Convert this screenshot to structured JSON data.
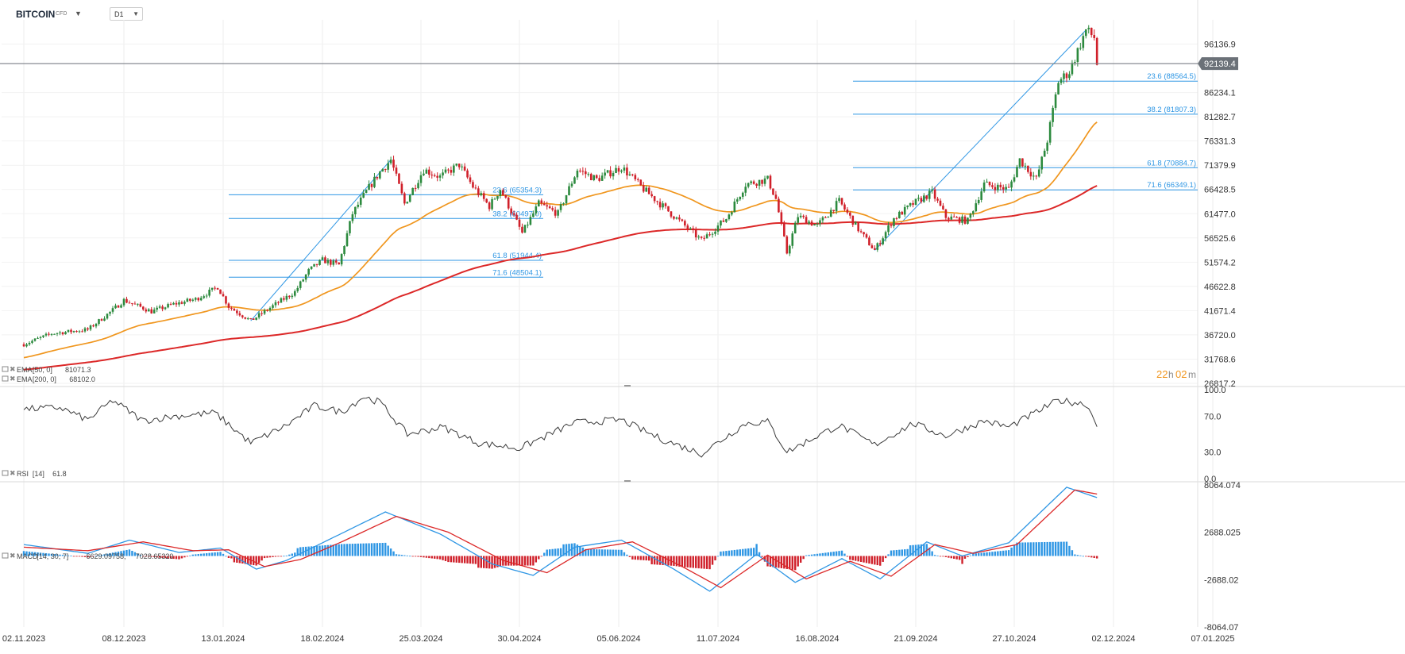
{
  "header": {
    "symbol": "BITCOIN",
    "symbol_suffix": "CFD",
    "timeframe": "D1",
    "countdown_hours": "22",
    "countdown_h": "h",
    "countdown_minutes": "02",
    "countdown_m": "m"
  },
  "colors": {
    "bull": "#2c8a3e",
    "bear": "#d0202a",
    "ema50": "#f0961e",
    "ema200": "#dc2828",
    "fib": "#2e96e4",
    "price_line": "#7a7f86",
    "rsi": "#3a3a3a",
    "macd": "#2e96e4",
    "signal": "#dc2828",
    "countdown": "#f0961e"
  },
  "icons": [
    "remove-icon",
    "settings-icon",
    "dropdown-caret-icon"
  ],
  "chart_data": [
    {
      "type": "candlestick",
      "title": "BITCOIN",
      "timeframe": "D1",
      "ylim": [
        26817.2,
        101088.0
      ],
      "y_ticks": [
        "96136.9",
        "86234.1",
        "81282.7",
        "76331.3",
        "71379.9",
        "66428.5",
        "61477.0",
        "56525.6",
        "51574.2",
        "46622.8",
        "41671.4",
        "36720.0",
        "31768.6",
        "26817.2"
      ],
      "x_ticks": [
        "02.11.2023",
        "08.12.2023",
        "13.01.2024",
        "18.02.2024",
        "25.03.2024",
        "30.04.2024",
        "05.06.2024",
        "11.07.2024",
        "16.08.2024",
        "21.09.2024",
        "27.10.2024",
        "02.12.2024",
        "07.01.2025"
      ],
      "current_price": 92139.4,
      "current_price_label": "92139.4",
      "price_path": [
        [
          "2023-11-02",
          34800
        ],
        [
          "2023-11-12",
          37000
        ],
        [
          "2023-11-25",
          37800
        ],
        [
          "2023-12-04",
          41800
        ],
        [
          "2023-12-08",
          43800
        ],
        [
          "2023-12-18",
          41500
        ],
        [
          "2023-12-26",
          43000
        ],
        [
          "2024-01-03",
          44000
        ],
        [
          "2024-01-08",
          45500
        ],
        [
          "2024-01-11",
          46500
        ],
        [
          "2024-01-15",
          42500
        ],
        [
          "2024-01-23",
          39600
        ],
        [
          "2024-02-01",
          43000
        ],
        [
          "2024-02-08",
          45500
        ],
        [
          "2024-02-13",
          49800
        ],
        [
          "2024-02-18",
          52000
        ],
        [
          "2024-02-24",
          51000
        ],
        [
          "2024-02-29",
          61500
        ],
        [
          "2024-03-05",
          66000
        ],
        [
          "2024-03-10",
          70000
        ],
        [
          "2024-03-14",
          72500
        ],
        [
          "2024-03-19",
          63500
        ],
        [
          "2024-03-26",
          70500
        ],
        [
          "2024-04-01",
          69000
        ],
        [
          "2024-04-08",
          71500
        ],
        [
          "2024-04-13",
          67000
        ],
        [
          "2024-04-19",
          63000
        ],
        [
          "2024-04-23",
          66500
        ],
        [
          "2024-05-01",
          57500
        ],
        [
          "2024-05-07",
          63500
        ],
        [
          "2024-05-14",
          61500
        ],
        [
          "2024-05-21",
          70500
        ],
        [
          "2024-05-28",
          68500
        ],
        [
          "2024-06-06",
          71000
        ],
        [
          "2024-06-14",
          66500
        ],
        [
          "2024-06-24",
          61500
        ],
        [
          "2024-07-05",
          56000
        ],
        [
          "2024-07-14",
          60500
        ],
        [
          "2024-07-21",
          67500
        ],
        [
          "2024-07-29",
          68500
        ],
        [
          "2024-08-01",
          64500
        ],
        [
          "2024-08-05",
          53500
        ],
        [
          "2024-08-09",
          61000
        ],
        [
          "2024-08-16",
          59000
        ],
        [
          "2024-08-24",
          64000
        ],
        [
          "2024-09-01",
          57500
        ],
        [
          "2024-09-06",
          54000
        ],
        [
          "2024-09-13",
          60500
        ],
        [
          "2024-09-20",
          63500
        ],
        [
          "2024-09-27",
          65800
        ],
        [
          "2024-10-02",
          60800
        ],
        [
          "2024-10-10",
          60000
        ],
        [
          "2024-10-16",
          67500
        ],
        [
          "2024-10-25",
          66500
        ],
        [
          "2024-10-29",
          72500
        ],
        [
          "2024-11-04",
          68500
        ],
        [
          "2024-11-08",
          76500
        ],
        [
          "2024-11-12",
          88500
        ],
        [
          "2024-11-16",
          90500
        ],
        [
          "2024-11-22",
          99000
        ],
        [
          "2024-11-25",
          97500
        ],
        [
          "2024-11-26",
          92139
        ]
      ],
      "fibonacci_retracements": [
        {
          "range": [
            "2024-01-23",
            "2024-03-14"
          ],
          "levels": [
            {
              "label": "23.6 (65354.3)",
              "value": 65354.3
            },
            {
              "label": "38.2 (60497.0)",
              "value": 60497.0
            },
            {
              "label": "61.8 (51944.4)",
              "value": 51944.4
            },
            {
              "label": "71.6 (48504.1)",
              "value": 48504.1
            }
          ]
        },
        {
          "range": [
            "2024-09-06",
            "2024-11-22"
          ],
          "levels": [
            {
              "label": "23.6 (88564.5)",
              "value": 88564.5
            },
            {
              "label": "38.2 (81807.3)",
              "value": 81807.3
            },
            {
              "label": "61.8 (70884.7)",
              "value": 70884.7
            },
            {
              "label": "71.6 (66349.1)",
              "value": 66349.1
            }
          ]
        }
      ],
      "indicators": [
        {
          "name": "EMA",
          "params": "[50, 0]",
          "value": "81071.3",
          "color": "#f0961e"
        },
        {
          "name": "EMA",
          "params": "[200, 0]",
          "value": "68102.0",
          "color": "#dc2828"
        }
      ]
    },
    {
      "type": "line",
      "title": "RSI",
      "params": "[14]",
      "value_label": "61.8",
      "ylim": [
        0,
        100
      ],
      "y_ticks": [
        "100.0",
        "70.0",
        "30.0",
        "0.0"
      ],
      "series": [
        {
          "values": [
            [
              "2023-11-02",
              78
            ],
            [
              "2023-11-15",
              80
            ],
            [
              "2023-11-25",
              66
            ],
            [
              "2023-12-04",
              88
            ],
            [
              "2023-12-15",
              65
            ],
            [
              "2023-12-26",
              70
            ],
            [
              "2024-01-10",
              74
            ],
            [
              "2024-01-23",
              40
            ],
            [
              "2024-02-05",
              60
            ],
            [
              "2024-02-15",
              82
            ],
            [
              "2024-02-25",
              75
            ],
            [
              "2024-03-04",
              92
            ],
            [
              "2024-03-10",
              86
            ],
            [
              "2024-03-20",
              50
            ],
            [
              "2024-04-02",
              58
            ],
            [
              "2024-04-15",
              40
            ],
            [
              "2024-04-30",
              34
            ],
            [
              "2024-05-20",
              63
            ],
            [
              "2024-06-06",
              66
            ],
            [
              "2024-06-20",
              45
            ],
            [
              "2024-07-05",
              28
            ],
            [
              "2024-07-21",
              62
            ],
            [
              "2024-07-29",
              64
            ],
            [
              "2024-08-05",
              30
            ],
            [
              "2024-08-16",
              48
            ],
            [
              "2024-08-24",
              60
            ],
            [
              "2024-09-06",
              38
            ],
            [
              "2024-09-20",
              62
            ],
            [
              "2024-10-02",
              48
            ],
            [
              "2024-10-16",
              65
            ],
            [
              "2024-10-25",
              58
            ],
            [
              "2024-11-12",
              88
            ],
            [
              "2024-11-22",
              84
            ],
            [
              "2024-11-26",
              62
            ]
          ]
        }
      ]
    },
    {
      "type": "line+bar",
      "title": "MACD",
      "params": "[14, 30, 7]",
      "value_labels": [
        "6629.09758",
        "7028.65320"
      ],
      "ylim": [
        -8064.07,
        8064.074
      ],
      "y_ticks": [
        "8064.074",
        "2688.025",
        "-2688.02",
        "-8064.07"
      ],
      "series": [
        {
          "values": [
            [
              "2023-11-02",
              1300
            ],
            [
              "2023-11-25",
              300
            ],
            [
              "2023-12-10",
              1800
            ],
            [
              "2023-12-28",
              400
            ],
            [
              "2024-01-12",
              900
            ],
            [
              "2024-01-25",
              -1500
            ],
            [
              "2024-02-05",
              -500
            ],
            [
              "2024-02-20",
              1800
            ],
            [
              "2024-03-12",
              5000
            ],
            [
              "2024-04-01",
              2500
            ],
            [
              "2024-04-20",
              -900
            ],
            [
              "2024-05-05",
              -2200
            ],
            [
              "2024-05-20",
              1000
            ],
            [
              "2024-06-06",
              1800
            ],
            [
              "2024-06-25",
              -1500
            ],
            [
              "2024-07-08",
              -4000
            ],
            [
              "2024-07-25",
              200
            ],
            [
              "2024-08-08",
              -3000
            ],
            [
              "2024-08-25",
              -300
            ],
            [
              "2024-09-08",
              -2600
            ],
            [
              "2024-09-25",
              1600
            ],
            [
              "2024-10-08",
              0
            ],
            [
              "2024-10-25",
              1500
            ],
            [
              "2024-11-15",
              7800
            ],
            [
              "2024-11-26",
              6629.1
            ]
          ]
        },
        {
          "values": [
            [
              "2023-11-02",
              1000
            ],
            [
              "2023-11-25",
              600
            ],
            [
              "2023-12-15",
              1600
            ],
            [
              "2024-01-02",
              600
            ],
            [
              "2024-01-15",
              700
            ],
            [
              "2024-01-28",
              -1200
            ],
            [
              "2024-02-10",
              -400
            ],
            [
              "2024-02-25",
              1600
            ],
            [
              "2024-03-16",
              4500
            ],
            [
              "2024-04-04",
              2700
            ],
            [
              "2024-04-24",
              -500
            ],
            [
              "2024-05-10",
              -1900
            ],
            [
              "2024-05-24",
              700
            ],
            [
              "2024-06-10",
              1600
            ],
            [
              "2024-06-28",
              -1200
            ],
            [
              "2024-07-12",
              -3600
            ],
            [
              "2024-07-29",
              100
            ],
            [
              "2024-08-12",
              -2600
            ],
            [
              "2024-08-28",
              -600
            ],
            [
              "2024-09-12",
              -2300
            ],
            [
              "2024-09-28",
              1300
            ],
            [
              "2024-10-12",
              300
            ],
            [
              "2024-10-28",
              1300
            ],
            [
              "2024-11-18",
              7500
            ],
            [
              "2024-11-26",
              7028.7
            ]
          ]
        }
      ]
    }
  ]
}
